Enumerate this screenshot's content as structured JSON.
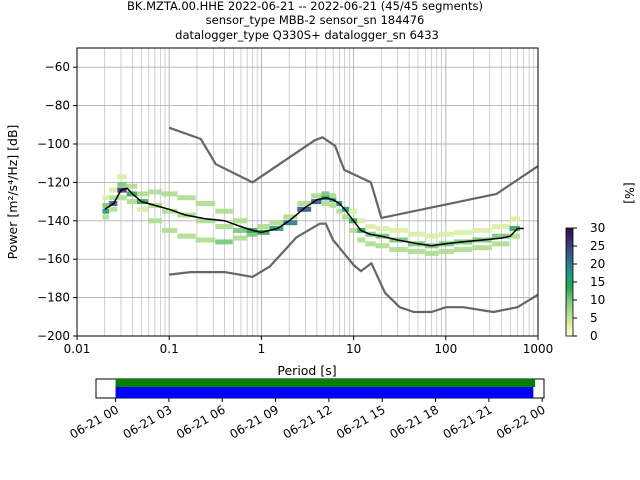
{
  "title_lines": [
    "BK.MZTA.00.HHE   2022-06-21 -- 2022-06-21  (45/45 segments)",
    "sensor_type MBB-2 sensor_sn 184476",
    "datalogger_type Q330S+ datalogger_sn 6433"
  ],
  "colors": {
    "model_curve": "#666666",
    "mode_curve": "#000000",
    "grid": "#b0b0b0",
    "timeline_green": "#008000",
    "timeline_blue": "#0000ff",
    "cmap": [
      "#ffffe5",
      "#d9f0a3",
      "#addd8e",
      "#78c679",
      "#31a354",
      "#1d9e7a",
      "#2a7a8c",
      "#35558a",
      "#3b2d6e",
      "#2d0f4a"
    ]
  },
  "colorbar": {
    "label": "[%]",
    "ticks": [
      0,
      5,
      10,
      15,
      20,
      25,
      30
    ],
    "range": [
      0,
      30
    ]
  },
  "chart_data": {
    "type": "line",
    "xscale": "log",
    "xlabel": "Period [s]",
    "ylabel": "Power [m²/s⁴/Hz] [dB]",
    "xlim": [
      0.01,
      1000
    ],
    "ylim": [
      -200,
      -50
    ],
    "xticks": [
      {
        "value": 0.01,
        "label": "0.01"
      },
      {
        "value": 0.1,
        "label": "0.1"
      },
      {
        "value": 1,
        "label": "1"
      },
      {
        "value": 10,
        "label": "10"
      },
      {
        "value": 100,
        "label": "100"
      },
      {
        "value": 1000,
        "label": "1000"
      }
    ],
    "yticks": [
      -60,
      -80,
      -100,
      -120,
      -140,
      -160,
      -180,
      -200
    ],
    "grid": true,
    "series": [
      {
        "role": "high-noise-model",
        "x": [
          0.1,
          0.22,
          0.32,
          0.8,
          3.8,
          4.6,
          6.3,
          7.9,
          15.4,
          20,
          354.8,
          1000
        ],
        "y": [
          -91.5,
          -97.4,
          -110.5,
          -120,
          -98,
          -96.5,
          -101,
          -113.5,
          -120,
          -138.5,
          -126,
          -111.5
        ]
      },
      {
        "role": "low-noise-model",
        "x": [
          0.1,
          0.17,
          0.4,
          0.8,
          1.24,
          2.4,
          4.3,
          5,
          6,
          10,
          12,
          15.6,
          21.9,
          31.6,
          45,
          70,
          101,
          154,
          328,
          600,
          1000
        ],
        "y": [
          -168,
          -166.7,
          -166.7,
          -169.2,
          -163.7,
          -148.6,
          -141.5,
          -141.5,
          -150,
          -163,
          -166.2,
          -162.1,
          -177.5,
          -185,
          -187.5,
          -187.5,
          -185,
          -185,
          -187.5,
          -185,
          -178.5
        ]
      },
      {
        "role": "mode",
        "x": [
          0.02,
          0.025,
          0.03,
          0.035,
          0.04,
          0.05,
          0.07,
          0.1,
          0.15,
          0.25,
          0.4,
          0.6,
          0.8,
          1,
          1.5,
          2,
          3,
          4,
          5,
          6,
          7,
          8,
          10,
          12,
          15,
          20,
          30,
          50,
          70,
          100,
          150,
          250,
          400,
          500,
          600,
          700
        ],
        "y": [
          -134,
          -131,
          -124,
          -123,
          -126,
          -130,
          -132,
          -134,
          -137,
          -139,
          -140,
          -143,
          -145,
          -146,
          -144,
          -140,
          -133,
          -129,
          -128,
          -129,
          -131,
          -134,
          -140,
          -145,
          -147,
          -148,
          -150,
          -152,
          -153,
          -152,
          -151,
          -150,
          -149,
          -148,
          -144,
          -144
        ]
      }
    ],
    "density_percent": [
      {
        "x": 0.02,
        "bins": [
          [
            -138,
            6
          ],
          [
            -135,
            18
          ],
          [
            -132,
            10
          ],
          [
            -128,
            4
          ]
        ]
      },
      {
        "x": 0.025,
        "bins": [
          [
            -134,
            8
          ],
          [
            -131,
            22
          ],
          [
            -128,
            8
          ],
          [
            -124,
            3
          ]
        ]
      },
      {
        "x": 0.03,
        "bins": [
          [
            -128,
            6
          ],
          [
            -124,
            28
          ],
          [
            -121,
            10
          ],
          [
            -117,
            3
          ]
        ]
      },
      {
        "x": 0.04,
        "bins": [
          [
            -130,
            5
          ],
          [
            -126,
            14
          ],
          [
            -122,
            6
          ]
        ]
      },
      {
        "x": 0.05,
        "bins": [
          [
            -134,
            4
          ],
          [
            -130,
            12
          ],
          [
            -126,
            6
          ]
        ]
      },
      {
        "x": 0.07,
        "bins": [
          [
            -140,
            6
          ],
          [
            -132,
            8
          ],
          [
            -125,
            6
          ]
        ]
      },
      {
        "x": 0.1,
        "bins": [
          [
            -145,
            8
          ],
          [
            -135,
            6
          ],
          [
            -126,
            6
          ]
        ]
      },
      {
        "x": 0.15,
        "bins": [
          [
            -148,
            8
          ],
          [
            -137,
            5
          ],
          [
            -128,
            6
          ]
        ]
      },
      {
        "x": 0.25,
        "bins": [
          [
            -150,
            8
          ],
          [
            -140,
            6
          ],
          [
            -131,
            6
          ]
        ]
      },
      {
        "x": 0.4,
        "bins": [
          [
            -151,
            9
          ],
          [
            -143,
            7
          ],
          [
            -135,
            5
          ]
        ]
      },
      {
        "x": 0.6,
        "bins": [
          [
            -149,
            8
          ],
          [
            -145,
            10
          ],
          [
            -140,
            5
          ]
        ]
      },
      {
        "x": 0.8,
        "bins": [
          [
            -147,
            10
          ],
          [
            -145,
            14
          ]
        ]
      },
      {
        "x": 1,
        "bins": [
          [
            -146,
            14
          ],
          [
            -143,
            8
          ]
        ]
      },
      {
        "x": 1.5,
        "bins": [
          [
            -144,
            16
          ],
          [
            -141,
            8
          ]
        ]
      },
      {
        "x": 2,
        "bins": [
          [
            -141,
            20
          ],
          [
            -138,
            8
          ]
        ]
      },
      {
        "x": 3,
        "bins": [
          [
            -134,
            22
          ],
          [
            -131,
            8
          ]
        ]
      },
      {
        "x": 4,
        "bins": [
          [
            -130,
            22
          ],
          [
            -127,
            8
          ]
        ]
      },
      {
        "x": 5,
        "bins": [
          [
            -128,
            20
          ],
          [
            -126,
            10
          ],
          [
            -131,
            5
          ]
        ]
      },
      {
        "x": 6,
        "bins": [
          [
            -129,
            18
          ],
          [
            -127,
            8
          ],
          [
            -132,
            5
          ]
        ]
      },
      {
        "x": 7,
        "bins": [
          [
            -131,
            16
          ],
          [
            -135,
            6
          ]
        ]
      },
      {
        "x": 8,
        "bins": [
          [
            -134,
            18
          ],
          [
            -138,
            5
          ]
        ]
      },
      {
        "x": 10,
        "bins": [
          [
            -140,
            14
          ],
          [
            -145,
            6
          ],
          [
            -135,
            4
          ]
        ]
      },
      {
        "x": 12,
        "bins": [
          [
            -145,
            12
          ],
          [
            -150,
            6
          ],
          [
            -140,
            4
          ]
        ]
      },
      {
        "x": 15,
        "bins": [
          [
            -147,
            10
          ],
          [
            -152,
            6
          ],
          [
            -143,
            4
          ]
        ]
      },
      {
        "x": 20,
        "bins": [
          [
            -148,
            10
          ],
          [
            -153,
            6
          ],
          [
            -144,
            4
          ]
        ]
      },
      {
        "x": 30,
        "bins": [
          [
            -150,
            10
          ],
          [
            -155,
            6
          ],
          [
            -145,
            4
          ]
        ]
      },
      {
        "x": 50,
        "bins": [
          [
            -152,
            10
          ],
          [
            -156,
            6
          ],
          [
            -147,
            4
          ]
        ]
      },
      {
        "x": 70,
        "bins": [
          [
            -153,
            10
          ],
          [
            -157,
            6
          ],
          [
            -148,
            4
          ]
        ]
      },
      {
        "x": 100,
        "bins": [
          [
            -152,
            10
          ],
          [
            -156,
            6
          ],
          [
            -147,
            4
          ]
        ]
      },
      {
        "x": 150,
        "bins": [
          [
            -151,
            10
          ],
          [
            -155,
            6
          ],
          [
            -146,
            4
          ]
        ]
      },
      {
        "x": 250,
        "bins": [
          [
            -150,
            10
          ],
          [
            -154,
            6
          ],
          [
            -145,
            4
          ]
        ]
      },
      {
        "x": 400,
        "bins": [
          [
            -148,
            10
          ],
          [
            -152,
            6
          ],
          [
            -143,
            4
          ]
        ]
      },
      {
        "x": 600,
        "bins": [
          [
            -144,
            12
          ],
          [
            -148,
            6
          ],
          [
            -139,
            4
          ]
        ]
      }
    ]
  },
  "timeline": {
    "tick_labels": [
      "06-21 00",
      "06-21 03",
      "06-21 06",
      "06-21 09",
      "06-21 12",
      "06-21 15",
      "06-21 18",
      "06-21 21",
      "06-22 00"
    ],
    "range_hours": [
      -1.1,
      24.1
    ],
    "green_span_hours": [
      0,
      23.6
    ],
    "blue_span_hours": [
      0,
      23.5
    ]
  }
}
